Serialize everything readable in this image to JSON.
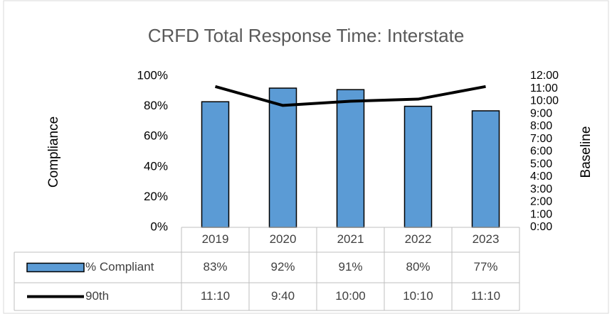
{
  "chart_data": {
    "type": "combo",
    "title": "CRFD Total Response Time: Interstate",
    "y_label": "Compliance",
    "y2_label": "Baseline",
    "categories": [
      "2019",
      "2020",
      "2021",
      "2022",
      "2023"
    ],
    "series": [
      {
        "name": "% Compliant",
        "type": "bar",
        "color": "#5b9bd5",
        "values": [
          83,
          92,
          91,
          80,
          77
        ],
        "value_labels": [
          "83%",
          "92%",
          "91%",
          "80%",
          "77%"
        ]
      },
      {
        "name": "90th",
        "type": "line",
        "color": "#000000",
        "axis": "y2",
        "values": [
          670,
          580,
          600,
          610,
          670
        ],
        "value_labels": [
          "11:10",
          "9:40",
          "10:00",
          "10:10",
          "11:10"
        ]
      }
    ],
    "ylim": [
      0,
      100
    ],
    "yticks": [
      {
        "value": 0,
        "label": "0%"
      },
      {
        "value": 20,
        "label": "20%"
      },
      {
        "value": 40,
        "label": "40%"
      },
      {
        "value": 60,
        "label": "60%"
      },
      {
        "value": 80,
        "label": "80%"
      },
      {
        "value": 100,
        "label": "100%"
      }
    ],
    "y2lim": [
      0,
      720
    ],
    "y2ticks": [
      {
        "value": 0,
        "label": "0:00"
      },
      {
        "value": 60,
        "label": "1:00"
      },
      {
        "value": 120,
        "label": "2:00"
      },
      {
        "value": 180,
        "label": "3:00"
      },
      {
        "value": 240,
        "label": "4:00"
      },
      {
        "value": 300,
        "label": "5:00"
      },
      {
        "value": 360,
        "label": "6:00"
      },
      {
        "value": 420,
        "label": "7:00"
      },
      {
        "value": 480,
        "label": "8:00"
      },
      {
        "value": 540,
        "label": "9:00"
      },
      {
        "value": 600,
        "label": "10:00"
      },
      {
        "value": 660,
        "label": "11:00"
      },
      {
        "value": 720,
        "label": "12:00"
      }
    ],
    "grid": false
  }
}
